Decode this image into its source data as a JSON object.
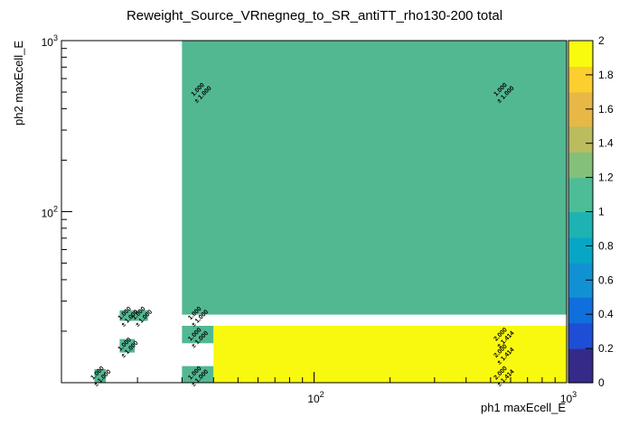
{
  "chart_data": {
    "type": "heatmap",
    "title": "Reweight_Source_VRnegneg_to_SR_antiTT_rho130-200 total",
    "xlabel": "ph1 maxEcell_E",
    "ylabel": "ph2 maxEcell_E",
    "x_scale": "log",
    "y_scale": "log",
    "xlim": [
      10,
      1000
    ],
    "ylim": [
      10,
      1000
    ],
    "zlim": [
      0,
      2
    ],
    "x_tick_labels": [
      "10^2",
      "10^3"
    ],
    "y_tick_labels": [
      "10^2",
      "10^3"
    ],
    "z_ticks": [
      "0",
      "0.2",
      "0.4",
      "0.6",
      "0.8",
      "1",
      "1.2",
      "1.4",
      "1.6",
      "1.8",
      "2"
    ],
    "cells": [
      {
        "x": [
          13.5,
          15.0
        ],
        "y": [
          10.0,
          12.0
        ],
        "value": 1.0,
        "label": "1.000",
        "error_label": "± 1.000"
      },
      {
        "x": [
          17.0,
          19.5
        ],
        "y": [
          15.0,
          18.0
        ],
        "value": 1.0,
        "label": "1.000",
        "error_label": "± 1.000"
      },
      {
        "x": [
          17.0,
          19.5
        ],
        "y": [
          23.0,
          26.5
        ],
        "value": 1.0,
        "label": "1.000",
        "error_label": "± 1.000"
      },
      {
        "x": [
          19.5,
          22.0
        ],
        "y": [
          23.0,
          26.5
        ],
        "value": 1.0,
        "label": "1.000",
        "error_label": "± 1.000"
      },
      {
        "x": [
          30.0,
          40.0
        ],
        "y": [
          10.0,
          12.5
        ],
        "value": 1.0,
        "label": "1.000",
        "error_label": "± 1.000"
      },
      {
        "x": [
          30.0,
          40.0
        ],
        "y": [
          17.0,
          21.5
        ],
        "value": 1.0,
        "label": "1.000",
        "error_label": "± 1.000"
      },
      {
        "x": [
          30.0,
          1000.0
        ],
        "y": [
          25.0,
          1000.0
        ],
        "value": 1.0,
        "label": "1.000",
        "error_label": "± 1.000"
      },
      {
        "x": [
          40.0,
          1000.0
        ],
        "y": [
          10.0,
          21.5
        ],
        "value": 2.0,
        "label": "2.000",
        "error_label": "± 1.414"
      }
    ],
    "cell_text": [
      {
        "x": 14.2,
        "y": 11.0,
        "label": "1.000",
        "error_label": "± 1.000"
      },
      {
        "x": 18.2,
        "y": 16.2,
        "label": "1.000",
        "error_label": "± 1.000"
      },
      {
        "x": 18.2,
        "y": 24.6,
        "label": "1.000",
        "error_label": "± 1.000"
      },
      {
        "x": 20.7,
        "y": 24.6,
        "label": "1.000",
        "error_label": "± 1.000"
      },
      {
        "x": 34.5,
        "y": 11.0,
        "label": "1.000",
        "error_label": "± 1.000"
      },
      {
        "x": 34.5,
        "y": 18.5,
        "label": "1.000",
        "error_label": "± 1.000"
      },
      {
        "x": 34.5,
        "y": 24.6,
        "label": "1.000",
        "error_label": "± 1.000"
      },
      {
        "x": 35.5,
        "y": 500.0,
        "label": "1.000",
        "error_label": "± 1.000"
      },
      {
        "x": 560.0,
        "y": 500.0,
        "label": "1.000",
        "error_label": "± 1.000"
      },
      {
        "x": 560.0,
        "y": 11.0,
        "label": "2.000",
        "error_label": "± 1.414"
      },
      {
        "x": 560.0,
        "y": 14.8,
        "label": "2.000",
        "error_label": "± 1.414"
      },
      {
        "x": 560.0,
        "y": 18.5,
        "label": "2.000",
        "error_label": "± 1.414"
      }
    ],
    "colors": {
      "value_1": "#52b892",
      "value_2": "#f9f90f",
      "palette": [
        "#352a87",
        "#1f4ed6",
        "#0f6fdd",
        "#1290d4",
        "#07a6c5",
        "#1eb3b2",
        "#4dbd98",
        "#84c079",
        "#bbbc5e",
        "#e7b846",
        "#fcce2e",
        "#f9fb0e"
      ]
    }
  }
}
